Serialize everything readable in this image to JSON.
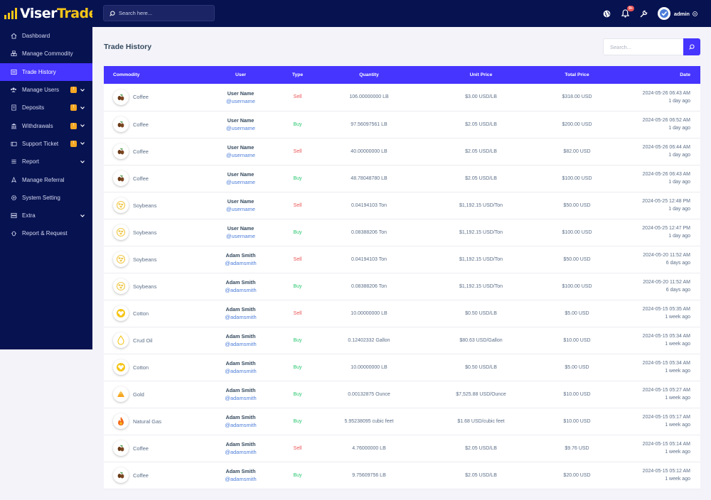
{
  "brand": {
    "name_a": "Viser",
    "name_b": "Trade",
    "accent": "#f5c518",
    "primary": "#4634ff",
    "dark": "#071251"
  },
  "topbar": {
    "search_placeholder": "Search here...",
    "notif_badge": "9+",
    "user": "admin"
  },
  "sidebar": {
    "items": [
      {
        "label": "Dashboard",
        "icon": "home-icon",
        "active": false,
        "badge": "",
        "chevron": false
      },
      {
        "label": "Manage Commodity",
        "icon": "boxes-icon",
        "active": false,
        "badge": "",
        "chevron": false
      },
      {
        "label": "Trade History",
        "icon": "list-icon",
        "active": true,
        "badge": "",
        "chevron": false
      },
      {
        "label": "Manage Users",
        "icon": "users-icon",
        "active": false,
        "badge": "!",
        "chevron": true
      },
      {
        "label": "Deposits",
        "icon": "deposit-icon",
        "active": false,
        "badge": "!",
        "chevron": true
      },
      {
        "label": "Withdrawals",
        "icon": "bank-icon",
        "active": false,
        "badge": "!",
        "chevron": true
      },
      {
        "label": "Support Ticket",
        "icon": "ticket-icon",
        "active": false,
        "badge": "!",
        "chevron": true
      },
      {
        "label": "Report",
        "icon": "report-icon",
        "active": false,
        "badge": "",
        "chevron": true
      },
      {
        "label": "Manage Referral",
        "icon": "referral-icon",
        "active": false,
        "badge": "",
        "chevron": false
      },
      {
        "label": "System Setting",
        "icon": "settings-icon",
        "active": false,
        "badge": "",
        "chevron": false
      },
      {
        "label": "Extra",
        "icon": "server-icon",
        "active": false,
        "badge": "",
        "chevron": true
      },
      {
        "label": "Report & Request",
        "icon": "bug-icon",
        "active": false,
        "badge": "",
        "chevron": false
      }
    ]
  },
  "main": {
    "title": "Trade History",
    "search_placeholder": "Search...",
    "columns": [
      "Commodity",
      "User",
      "Type",
      "Quantity",
      "Unit Price",
      "Total Price",
      "Date"
    ],
    "rows": [
      {
        "commodity": "Coffee",
        "icon": "coffee",
        "user": "User Name",
        "handle": "@username",
        "type": "Sell",
        "qty": "106.00000000 LB",
        "unit": "$3.00 USD/LB",
        "total": "$318.00 USD",
        "date": "2024-05-26 06:43 AM",
        "ago": "1 day ago"
      },
      {
        "commodity": "Coffee",
        "icon": "coffee",
        "user": "User Name",
        "handle": "@username",
        "type": "Buy",
        "qty": "97.56097561 LB",
        "unit": "$2.05 USD/LB",
        "total": "$200.00 USD",
        "date": "2024-05-26 06:52 AM",
        "ago": "1 day ago"
      },
      {
        "commodity": "Coffee",
        "icon": "coffee",
        "user": "User Name",
        "handle": "@username",
        "type": "Sell",
        "qty": "40.00000000 LB",
        "unit": "$2.05 USD/LB",
        "total": "$82.00 USD",
        "date": "2024-05-26 06:44 AM",
        "ago": "1 day ago"
      },
      {
        "commodity": "Coffee",
        "icon": "coffee",
        "user": "User Name",
        "handle": "@username",
        "type": "Buy",
        "qty": "48.78048780 LB",
        "unit": "$2.05 USD/LB",
        "total": "$100.00 USD",
        "date": "2024-05-26 06:43 AM",
        "ago": "1 day ago"
      },
      {
        "commodity": "Soybeans",
        "icon": "soybeans",
        "user": "User Name",
        "handle": "@username",
        "type": "Sell",
        "qty": "0.04194103 Ton",
        "unit": "$1,192.15 USD/Ton",
        "total": "$50.00 USD",
        "date": "2024-05-25 12:48 PM",
        "ago": "1 day ago"
      },
      {
        "commodity": "Soybeans",
        "icon": "soybeans",
        "user": "User Name",
        "handle": "@username",
        "type": "Buy",
        "qty": "0.08388206 Ton",
        "unit": "$1,192.15 USD/Ton",
        "total": "$100.00 USD",
        "date": "2024-05-25 12:47 PM",
        "ago": "1 day ago"
      },
      {
        "commodity": "Soybeans",
        "icon": "soybeans",
        "user": "Adam Smith",
        "handle": "@adamsmith",
        "type": "Sell",
        "qty": "0.04194103 Ton",
        "unit": "$1,192.15 USD/Ton",
        "total": "$50.00 USD",
        "date": "2024-05-20 11:52 AM",
        "ago": "6 days ago"
      },
      {
        "commodity": "Soybeans",
        "icon": "soybeans",
        "user": "Adam Smith",
        "handle": "@adamsmith",
        "type": "Buy",
        "qty": "0.08388206 Ton",
        "unit": "$1,192.15 USD/Ton",
        "total": "$100.00 USD",
        "date": "2024-05-20 11:52 AM",
        "ago": "6 days ago"
      },
      {
        "commodity": "Cotton",
        "icon": "cotton",
        "user": "Adam Smith",
        "handle": "@adamsmith",
        "type": "Sell",
        "qty": "10.00000000 LB",
        "unit": "$0.50 USD/LB",
        "total": "$5.00 USD",
        "date": "2024-05-15 05:35 AM",
        "ago": "1 week ago"
      },
      {
        "commodity": "Crud Oil",
        "icon": "oil",
        "user": "Adam Smith",
        "handle": "@adamsmith",
        "type": "Buy",
        "qty": "0.12402332 Gallon",
        "unit": "$80.63 USD/Gallon",
        "total": "$10.00 USD",
        "date": "2024-05-15 05:34 AM",
        "ago": "1 week ago"
      },
      {
        "commodity": "Cotton",
        "icon": "cotton",
        "user": "Adam Smith",
        "handle": "@adamsmith",
        "type": "Buy",
        "qty": "10.00000000 LB",
        "unit": "$0.50 USD/LB",
        "total": "$5.00 USD",
        "date": "2024-05-15 05:34 AM",
        "ago": "1 week ago"
      },
      {
        "commodity": "Gold",
        "icon": "gold",
        "user": "Adam Smith",
        "handle": "@adamsmith",
        "type": "Buy",
        "qty": "0.00132875 Ounce",
        "unit": "$7,525.88 USD/Ounce",
        "total": "$10.00 USD",
        "date": "2024-05-15 05:27 AM",
        "ago": "1 week ago"
      },
      {
        "commodity": "Natural Gas",
        "icon": "gas",
        "user": "Adam Smith",
        "handle": "@adamsmith",
        "type": "Buy",
        "qty": "5.95238095 cubic feet",
        "unit": "$1.68 USD/cubic feet",
        "total": "$10.00 USD",
        "date": "2024-05-15 05:17 AM",
        "ago": "1 week ago"
      },
      {
        "commodity": "Coffee",
        "icon": "coffee",
        "user": "Adam Smith",
        "handle": "@adamsmith",
        "type": "Sell",
        "qty": "4.76000000 LB",
        "unit": "$2.05 USD/LB",
        "total": "$9.76 USD",
        "date": "2024-05-15 05:14 AM",
        "ago": "1 week ago"
      },
      {
        "commodity": "Coffee",
        "icon": "coffee",
        "user": "Adam Smith",
        "handle": "@adamsmith",
        "type": "Buy",
        "qty": "9.75609756 LB",
        "unit": "$2.05 USD/LB",
        "total": "$20.00 USD",
        "date": "2024-05-15 05:12 AM",
        "ago": "1 week ago"
      }
    ]
  }
}
